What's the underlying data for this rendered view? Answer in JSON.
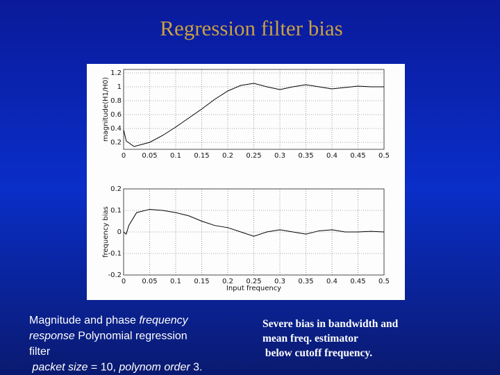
{
  "title": "Regression filter bias",
  "caption_left": [
    [
      {
        "text": "Magnitude and phase ",
        "italic": false
      },
      {
        "text": "frequency",
        "italic": true
      }
    ],
    [
      {
        "text": "response",
        "italic": true
      },
      {
        "text": " Polynomial regression",
        "italic": false
      }
    ],
    [
      {
        "text": "filter",
        "italic": false
      }
    ],
    [
      {
        "text": " packet size",
        "italic": true
      },
      {
        "text": " = 10, ",
        "italic": false
      },
      {
        "text": "polynom order",
        "italic": true
      },
      {
        "text": " 3.",
        "italic": false
      }
    ]
  ],
  "caption_right": [
    "Severe bias in bandwidth and",
    "mean freq. estimator",
    " below cutoff frequency."
  ],
  "chart_data": [
    {
      "type": "line",
      "ylabel": "magnitude(H1/H0)",
      "grid": true,
      "color": "#000000",
      "x": [
        0,
        0.005,
        0.02,
        0.05,
        0.075,
        0.1,
        0.125,
        0.15,
        0.175,
        0.2,
        0.225,
        0.25,
        0.275,
        0.3,
        0.325,
        0.35,
        0.375,
        0.4,
        0.425,
        0.45,
        0.475,
        0.5
      ],
      "values": [
        0.38,
        0.22,
        0.14,
        0.2,
        0.3,
        0.42,
        0.55,
        0.68,
        0.82,
        0.94,
        1.02,
        1.05,
        1.0,
        0.96,
        1.0,
        1.03,
        1.0,
        0.97,
        0.99,
        1.01,
        1.0,
        1.0
      ],
      "xlim": [
        0,
        0.5
      ],
      "xticks": [
        0,
        0.05,
        0.1,
        0.15,
        0.2,
        0.25,
        0.3,
        0.35,
        0.4,
        0.45,
        0.5
      ],
      "ylim": [
        0.1,
        1.25
      ],
      "yticks": [
        0.2,
        0.4,
        0.6,
        0.8,
        1,
        1.2
      ]
    },
    {
      "type": "line",
      "ylabel": "frequency bias",
      "xlabel": "Input frequency",
      "grid": true,
      "color": "#000000",
      "x": [
        0,
        0.005,
        0.01,
        0.025,
        0.05,
        0.075,
        0.1,
        0.125,
        0.15,
        0.175,
        0.2,
        0.225,
        0.25,
        0.275,
        0.3,
        0.325,
        0.35,
        0.375,
        0.4,
        0.425,
        0.45,
        0.475,
        0.5
      ],
      "values": [
        0,
        -0.01,
        0.03,
        0.09,
        0.105,
        0.1,
        0.09,
        0.075,
        0.05,
        0.03,
        0.02,
        0.0,
        -0.02,
        0.0,
        0.01,
        0.0,
        -0.01,
        0.005,
        0.01,
        0.0,
        0.0,
        0.003,
        0.0
      ],
      "xlim": [
        0,
        0.5
      ],
      "xticks": [
        0,
        0.05,
        0.1,
        0.15,
        0.2,
        0.25,
        0.3,
        0.35,
        0.4,
        0.45,
        0.5
      ],
      "ylim": [
        -0.2,
        0.2
      ],
      "yticks": [
        -0.2,
        -0.1,
        0,
        0.1,
        0.2
      ]
    }
  ]
}
